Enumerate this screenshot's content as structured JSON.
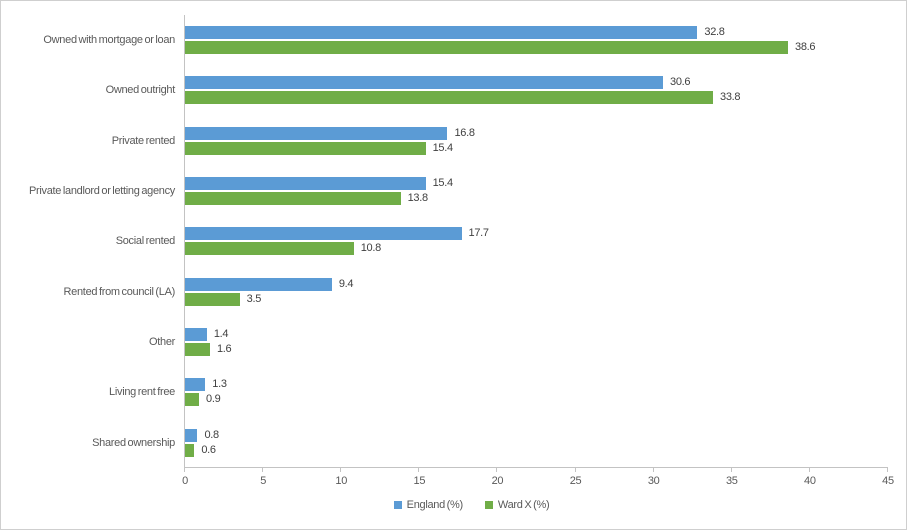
{
  "chart_data": {
    "type": "bar",
    "orientation": "horizontal",
    "title": "",
    "xlabel": "",
    "ylabel": "",
    "grid": false,
    "legend_position": "bottom",
    "data_labels": true,
    "categories": [
      "Owned with mortgage or loan",
      "Owned outright",
      "Private rented",
      "Private landlord or letting agency",
      "Social rented",
      "Rented from council (LA)",
      "Other",
      "Living rent free",
      "Shared ownership"
    ],
    "series": [
      {
        "name": "England (%)",
        "color": "#5B9BD5",
        "values": [
          32.8,
          30.6,
          16.8,
          15.4,
          17.7,
          9.4,
          1.4,
          1.3,
          0.8
        ]
      },
      {
        "name": "Ward X (%)",
        "color": "#70AD47",
        "values": [
          38.6,
          33.8,
          15.4,
          13.8,
          10.8,
          3.5,
          1.6,
          0.9,
          0.6
        ]
      }
    ],
    "x_axis": {
      "min": 0,
      "max": 45,
      "tick_interval": 5,
      "ticks": [
        0,
        5,
        10,
        15,
        20,
        25,
        30,
        35,
        40,
        45
      ]
    }
  },
  "colors": {
    "axis_line": "#c3c3c3",
    "tick_label": "#595959",
    "category_label": "#595959",
    "data_label": "#404040",
    "background": "#ffffff",
    "border": "#cfcfcf"
  }
}
